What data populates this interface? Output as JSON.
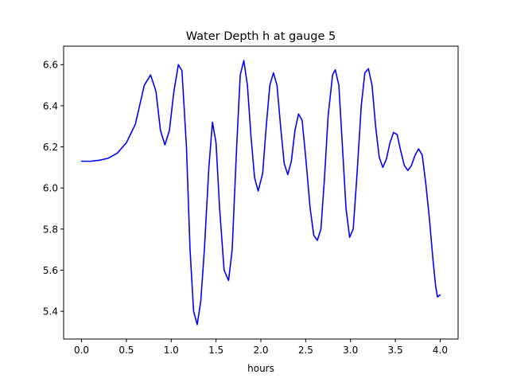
{
  "chart_data": {
    "type": "line",
    "title": "Water Depth h at gauge 5",
    "xlabel": "hours",
    "ylabel": "",
    "xlim": [
      -0.2,
      4.2
    ],
    "ylim": [
      5.265,
      6.69
    ],
    "grid": false,
    "legend": "none",
    "xticks": [
      0.0,
      0.5,
      1.0,
      1.5,
      2.0,
      2.5,
      3.0,
      3.5,
      4.0
    ],
    "xtick_labels": [
      "0.0",
      "0.5",
      "1.0",
      "1.5",
      "2.0",
      "2.5",
      "3.0",
      "3.5",
      "4.0"
    ],
    "yticks": [
      5.4,
      5.6,
      5.8,
      6.0,
      6.2,
      6.4,
      6.6
    ],
    "ytick_labels": [
      "5.4",
      "5.6",
      "5.8",
      "6.0",
      "6.2",
      "6.4",
      "6.6"
    ],
    "series": [
      {
        "color": "#0000ff",
        "points": [
          [
            0.0,
            6.13
          ],
          [
            0.1,
            6.13
          ],
          [
            0.2,
            6.135
          ],
          [
            0.3,
            6.145
          ],
          [
            0.4,
            6.17
          ],
          [
            0.5,
            6.22
          ],
          [
            0.6,
            6.31
          ],
          [
            0.7,
            6.5
          ],
          [
            0.77,
            6.55
          ],
          [
            0.83,
            6.47
          ],
          [
            0.88,
            6.28
          ],
          [
            0.93,
            6.21
          ],
          [
            0.98,
            6.28
          ],
          [
            1.03,
            6.47
          ],
          [
            1.08,
            6.6
          ],
          [
            1.12,
            6.57
          ],
          [
            1.17,
            6.2
          ],
          [
            1.21,
            5.7
          ],
          [
            1.25,
            5.4
          ],
          [
            1.29,
            5.335
          ],
          [
            1.33,
            5.45
          ],
          [
            1.37,
            5.7
          ],
          [
            1.42,
            6.1
          ],
          [
            1.46,
            6.32
          ],
          [
            1.5,
            6.22
          ],
          [
            1.54,
            5.9
          ],
          [
            1.59,
            5.6
          ],
          [
            1.64,
            5.55
          ],
          [
            1.68,
            5.7
          ],
          [
            1.73,
            6.2
          ],
          [
            1.77,
            6.55
          ],
          [
            1.81,
            6.62
          ],
          [
            1.85,
            6.5
          ],
          [
            1.89,
            6.25
          ],
          [
            1.93,
            6.05
          ],
          [
            1.97,
            5.985
          ],
          [
            2.02,
            6.07
          ],
          [
            2.06,
            6.3
          ],
          [
            2.1,
            6.5
          ],
          [
            2.14,
            6.56
          ],
          [
            2.18,
            6.5
          ],
          [
            2.22,
            6.3
          ],
          [
            2.26,
            6.12
          ],
          [
            2.3,
            6.065
          ],
          [
            2.34,
            6.13
          ],
          [
            2.38,
            6.28
          ],
          [
            2.42,
            6.36
          ],
          [
            2.46,
            6.33
          ],
          [
            2.5,
            6.15
          ],
          [
            2.55,
            5.9
          ],
          [
            2.59,
            5.77
          ],
          [
            2.63,
            5.745
          ],
          [
            2.67,
            5.8
          ],
          [
            2.71,
            6.05
          ],
          [
            2.75,
            6.35
          ],
          [
            2.8,
            6.55
          ],
          [
            2.83,
            6.575
          ],
          [
            2.87,
            6.5
          ],
          [
            2.91,
            6.2
          ],
          [
            2.95,
            5.9
          ],
          [
            2.99,
            5.76
          ],
          [
            3.03,
            5.8
          ],
          [
            3.07,
            6.05
          ],
          [
            3.12,
            6.4
          ],
          [
            3.16,
            6.56
          ],
          [
            3.2,
            6.58
          ],
          [
            3.24,
            6.5
          ],
          [
            3.28,
            6.3
          ],
          [
            3.32,
            6.15
          ],
          [
            3.36,
            6.1
          ],
          [
            3.4,
            6.14
          ],
          [
            3.44,
            6.22
          ],
          [
            3.48,
            6.27
          ],
          [
            3.52,
            6.26
          ],
          [
            3.56,
            6.18
          ],
          [
            3.6,
            6.11
          ],
          [
            3.64,
            6.085
          ],
          [
            3.68,
            6.11
          ],
          [
            3.72,
            6.16
          ],
          [
            3.76,
            6.19
          ],
          [
            3.8,
            6.16
          ],
          [
            3.84,
            6.02
          ],
          [
            3.88,
            5.85
          ],
          [
            3.92,
            5.65
          ],
          [
            3.95,
            5.52
          ],
          [
            3.97,
            5.47
          ],
          [
            4.0,
            5.48
          ]
        ]
      }
    ]
  }
}
